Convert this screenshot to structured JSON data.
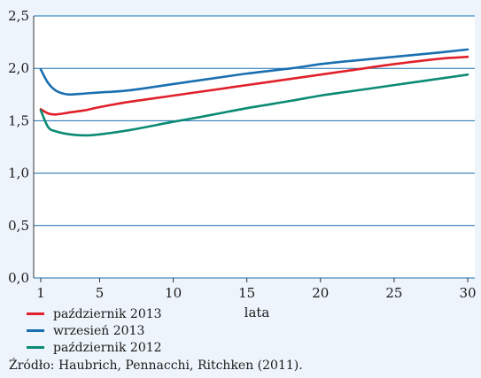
{
  "chart_data": {
    "type": "line",
    "xlabel": "lata",
    "ylabel": "",
    "xlim": [
      1,
      30
    ],
    "ylim": [
      0,
      2.5
    ],
    "x_ticks": [
      1,
      5,
      10,
      15,
      20,
      25,
      30
    ],
    "x_tick_labels": [
      "1",
      "5",
      "10",
      "15",
      "20",
      "25",
      "30"
    ],
    "y_ticks": [
      0,
      0.5,
      1.0,
      1.5,
      2.0,
      2.5
    ],
    "y_tick_labels": [
      "0,0",
      "0,5",
      "1,0",
      "1,5",
      "2,0",
      "2,5"
    ],
    "grid": "horizontal",
    "legend_position": "bottom-left",
    "series": [
      {
        "name": "październik 2013",
        "color": "#e0202a",
        "x": [
          1,
          1.5,
          2,
          3,
          4,
          5,
          7,
          10,
          12,
          15,
          18,
          20,
          22,
          25,
          28,
          30
        ],
        "y": [
          1.61,
          1.57,
          1.56,
          1.58,
          1.6,
          1.63,
          1.68,
          1.74,
          1.78,
          1.84,
          1.9,
          1.94,
          1.98,
          2.04,
          2.09,
          2.11
        ]
      },
      {
        "name": "wrzesień 2013",
        "color": "#1a6fb0",
        "x": [
          1,
          1.5,
          2,
          2.5,
          3,
          4,
          5,
          7,
          10,
          12,
          15,
          18,
          20,
          22,
          25,
          28,
          30
        ],
        "y": [
          1.99,
          1.86,
          1.79,
          1.76,
          1.75,
          1.76,
          1.77,
          1.79,
          1.85,
          1.89,
          1.95,
          2.0,
          2.04,
          2.07,
          2.11,
          2.15,
          2.18
        ]
      },
      {
        "name": "październik 2012",
        "color": "#0b8a74",
        "x": [
          1,
          1.5,
          2,
          3,
          4,
          5,
          7,
          10,
          12,
          15,
          18,
          20,
          22,
          25,
          28,
          30
        ],
        "y": [
          1.6,
          1.44,
          1.4,
          1.37,
          1.36,
          1.37,
          1.41,
          1.49,
          1.54,
          1.62,
          1.69,
          1.74,
          1.78,
          1.84,
          1.9,
          1.94
        ]
      }
    ]
  },
  "source_note": "Źródło: Haubrich, Pennacchi, Ritchken (2011)."
}
